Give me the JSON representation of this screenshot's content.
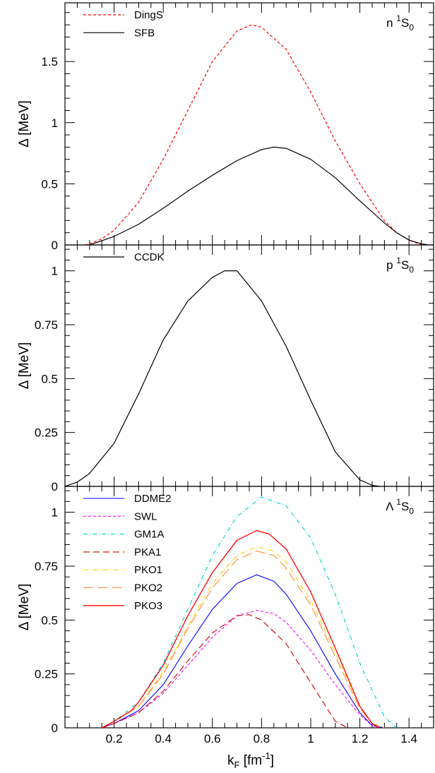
{
  "xaxis": {
    "label_main": "k",
    "label_sub": "F",
    "label_unit": " [fm",
    "label_sup": "-1",
    "label_close": "]",
    "xlim": [
      0,
      1.5
    ],
    "ticks": [
      0.2,
      0.4,
      0.6,
      0.8,
      1,
      1.2,
      1.4
    ],
    "tick_labels": [
      "0.2",
      "0.4",
      "0.6",
      "0.8",
      "1",
      "1.2",
      "1.4"
    ]
  },
  "chart_data": [
    {
      "type": "line",
      "panel_label": {
        "pre": "n ",
        "sup": "1",
        "main": "S",
        "sub": "0"
      },
      "ylabel": "Δ [MeV]",
      "ylim": [
        0,
        1.98
      ],
      "yticks": [
        0,
        0.5,
        1,
        1.5
      ],
      "ytick_labels": [
        "0",
        "0.5",
        "1",
        "1.5"
      ],
      "legend_position": "top-left",
      "series": [
        {
          "name": "DingS",
          "color": "#ff0000",
          "dash": "4,3",
          "width": 1.2,
          "x": [
            0.08,
            0.1,
            0.15,
            0.2,
            0.3,
            0.4,
            0.5,
            0.6,
            0.7,
            0.76,
            0.8,
            0.9,
            1.0,
            1.1,
            1.2,
            1.3,
            1.35,
            1.4,
            1.45
          ],
          "y": [
            0.0,
            0.01,
            0.05,
            0.12,
            0.35,
            0.7,
            1.1,
            1.5,
            1.75,
            1.8,
            1.78,
            1.6,
            1.25,
            0.85,
            0.5,
            0.2,
            0.1,
            0.04,
            0.0
          ]
        },
        {
          "name": "SFB",
          "color": "#000000",
          "dash": "",
          "width": 1.2,
          "x": [
            0.1,
            0.2,
            0.3,
            0.4,
            0.5,
            0.6,
            0.7,
            0.8,
            0.85,
            0.9,
            1.0,
            1.1,
            1.2,
            1.3,
            1.35,
            1.4,
            1.45,
            1.48
          ],
          "y": [
            0.0,
            0.07,
            0.17,
            0.3,
            0.44,
            0.57,
            0.69,
            0.78,
            0.8,
            0.79,
            0.7,
            0.55,
            0.36,
            0.18,
            0.1,
            0.04,
            0.01,
            0.0
          ]
        }
      ]
    },
    {
      "type": "line",
      "panel_label": {
        "pre": "p ",
        "sup": "1",
        "main": "S",
        "sub": "0"
      },
      "ylabel": "Δ [MeV]",
      "ylim": [
        0,
        1.12
      ],
      "yticks": [
        0,
        0.25,
        0.5,
        0.75,
        1
      ],
      "ytick_labels": [
        "0",
        "0.25",
        "0.5",
        "0.75",
        "1"
      ],
      "legend_position": "top-left",
      "series": [
        {
          "name": "CCDK",
          "color": "#000000",
          "dash": "",
          "width": 1.2,
          "x": [
            0.0,
            0.05,
            0.1,
            0.2,
            0.3,
            0.4,
            0.5,
            0.6,
            0.65,
            0.68,
            0.7,
            0.8,
            0.9,
            1.0,
            1.1,
            1.2,
            1.25,
            1.28
          ],
          "y": [
            0.0,
            0.02,
            0.06,
            0.2,
            0.43,
            0.68,
            0.86,
            0.97,
            1.0,
            1.0,
            1.0,
            0.86,
            0.65,
            0.4,
            0.16,
            0.03,
            0.005,
            0.0
          ]
        }
      ]
    },
    {
      "type": "line",
      "panel_label": {
        "pre": "Λ ",
        "sup": "1",
        "main": "S",
        "sub": "0"
      },
      "ylabel": "Δ [MeV]",
      "ylim": [
        0,
        1.12
      ],
      "yticks": [
        0,
        0.25,
        0.5,
        0.75,
        1
      ],
      "ytick_labels": [
        "0",
        "0.25",
        "0.5",
        "0.75",
        "1"
      ],
      "legend_position": "top-left",
      "series": [
        {
          "name": "DDME2",
          "color": "#0000ff",
          "dash": "",
          "width": 1.1,
          "x": [
            0.15,
            0.2,
            0.3,
            0.4,
            0.5,
            0.6,
            0.7,
            0.78,
            0.85,
            0.9,
            1.0,
            1.1,
            1.2,
            1.25,
            1.3
          ],
          "y": [
            0.0,
            0.02,
            0.08,
            0.2,
            0.38,
            0.55,
            0.67,
            0.71,
            0.68,
            0.62,
            0.45,
            0.25,
            0.07,
            0.01,
            0.0
          ]
        },
        {
          "name": "SWL",
          "color": "#ff00ff",
          "dash": "4,3",
          "width": 1.1,
          "x": [
            0.15,
            0.2,
            0.3,
            0.4,
            0.5,
            0.6,
            0.7,
            0.78,
            0.85,
            0.9,
            1.0,
            1.1,
            1.2,
            1.25,
            1.28
          ],
          "y": [
            0.0,
            0.02,
            0.07,
            0.16,
            0.29,
            0.42,
            0.52,
            0.545,
            0.53,
            0.49,
            0.36,
            0.2,
            0.06,
            0.01,
            0.0
          ]
        },
        {
          "name": "GM1A",
          "color": "#00cccc",
          "dash": "6,3,1,3",
          "width": 1.1,
          "x": [
            0.15,
            0.2,
            0.3,
            0.4,
            0.5,
            0.6,
            0.7,
            0.8,
            0.9,
            1.0,
            1.1,
            1.2,
            1.3,
            1.35
          ],
          "y": [
            0.0,
            0.03,
            0.12,
            0.3,
            0.55,
            0.8,
            0.98,
            1.07,
            1.03,
            0.88,
            0.62,
            0.3,
            0.05,
            0.0
          ]
        },
        {
          "name": "PKA1",
          "color": "#cc0000",
          "dash": "9,5",
          "width": 1.1,
          "x": [
            0.15,
            0.2,
            0.3,
            0.4,
            0.5,
            0.6,
            0.7,
            0.75,
            0.8,
            0.9,
            1.0,
            1.1,
            1.15
          ],
          "y": [
            0.0,
            0.02,
            0.07,
            0.17,
            0.31,
            0.44,
            0.52,
            0.525,
            0.5,
            0.39,
            0.21,
            0.03,
            0.0
          ]
        },
        {
          "name": "PKO1",
          "color": "#ffcc00",
          "dash": "7,3,1,3",
          "width": 1.1,
          "x": [
            0.15,
            0.2,
            0.3,
            0.4,
            0.5,
            0.6,
            0.7,
            0.78,
            0.85,
            0.9,
            1.0,
            1.1,
            1.2,
            1.25,
            1.3
          ],
          "y": [
            0.0,
            0.03,
            0.1,
            0.26,
            0.47,
            0.67,
            0.8,
            0.84,
            0.82,
            0.77,
            0.59,
            0.35,
            0.1,
            0.02,
            0.0
          ]
        },
        {
          "name": "PKO2",
          "color": "#ff8833",
          "dash": "14,6",
          "width": 1.1,
          "x": [
            0.15,
            0.2,
            0.3,
            0.4,
            0.5,
            0.6,
            0.7,
            0.78,
            0.85,
            0.9,
            1.0,
            1.1,
            1.2,
            1.25,
            1.3
          ],
          "y": [
            0.0,
            0.03,
            0.1,
            0.25,
            0.46,
            0.65,
            0.78,
            0.82,
            0.8,
            0.74,
            0.57,
            0.33,
            0.09,
            0.02,
            0.0
          ]
        },
        {
          "name": "PKO3",
          "color": "#ff0000",
          "dash": "",
          "width": 1.3,
          "x": [
            0.15,
            0.2,
            0.27,
            0.3,
            0.4,
            0.5,
            0.6,
            0.7,
            0.78,
            0.83,
            0.9,
            1.0,
            1.1,
            1.2,
            1.25,
            1.28
          ],
          "y": [
            0.0,
            0.03,
            0.08,
            0.12,
            0.29,
            0.52,
            0.72,
            0.87,
            0.915,
            0.9,
            0.83,
            0.63,
            0.37,
            0.1,
            0.02,
            0.0
          ]
        }
      ]
    }
  ]
}
